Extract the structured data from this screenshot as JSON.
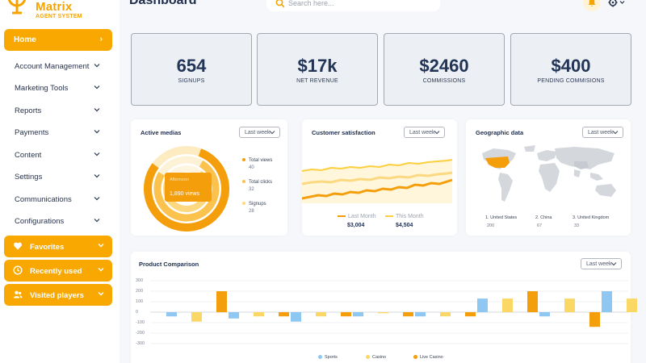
{
  "brand": {
    "name": "Matrix",
    "subtitle": "AGENT SYSTEM"
  },
  "header": {
    "title": "Dashboard",
    "search_placeholder": "Search here..."
  },
  "sidebar": {
    "home": "Home",
    "items": [
      {
        "label": "Account Management"
      },
      {
        "label": "Marketing Tools"
      },
      {
        "label": "Reports"
      },
      {
        "label": "Payments"
      },
      {
        "label": "Content"
      },
      {
        "label": "Settings"
      },
      {
        "label": "Communications"
      },
      {
        "label": "Configurations"
      }
    ],
    "pills": [
      {
        "label": "Favorites",
        "icon": "heart-icon"
      },
      {
        "label": "Recently used",
        "icon": "clock-icon"
      },
      {
        "label": "Visited players",
        "icon": "users-icon"
      }
    ]
  },
  "kpis": [
    {
      "value": "654",
      "label": "SIGNUPS"
    },
    {
      "value": "$17k",
      "label": "NET REVENUE"
    },
    {
      "value": "$2460",
      "label": "COMMISSIONS"
    },
    {
      "value": "$400",
      "label": "PENDING COMMISIONS"
    }
  ],
  "active_medias": {
    "title": "Active medias",
    "range": "Last week",
    "tooltip_title": "Afternoon",
    "tooltip_value": "1,890 views",
    "legend": [
      {
        "label": "Total views",
        "value": "40",
        "color": "#f59e0b"
      },
      {
        "label": "Total clicks",
        "value": "32",
        "color": "#fbc24d"
      },
      {
        "label": "Signups",
        "value": "28",
        "color": "#fcd980"
      }
    ]
  },
  "satisfaction": {
    "title": "Customer satisfaction",
    "range": "Last week",
    "last_label": "Last Month",
    "this_label": "This Month",
    "last_value": "$3,004",
    "this_value": "$4,504"
  },
  "geo": {
    "title": "Geographic data",
    "range": "Last week",
    "countries": [
      {
        "label": "1. United States",
        "value": "200"
      },
      {
        "label": "2. China",
        "value": "67"
      },
      {
        "label": "3. United Kingdom",
        "value": "33"
      }
    ]
  },
  "product": {
    "title": "Product Comparison",
    "range": "Last week",
    "yticks": [
      "300",
      "200",
      "100",
      "0",
      "-100",
      "-200",
      "-300"
    ],
    "legend": [
      {
        "label": "Sports",
        "color": "#8ec8f2"
      },
      {
        "label": "Casino",
        "color": "#fbd766"
      },
      {
        "label": "Live Casino",
        "color": "#f59e0b"
      }
    ]
  },
  "chart_data": {
    "type": "bar",
    "title": "Product Comparison",
    "ylim": [
      -300,
      300
    ],
    "series": [
      {
        "name": "Sports",
        "values": [
          -40,
          -60,
          -90,
          -40,
          -40,
          130,
          -40,
          200
        ]
      },
      {
        "name": "Casino",
        "values": [
          -90,
          -40,
          -40,
          -10,
          -40,
          130,
          130,
          130
        ]
      },
      {
        "name": "Live Casino",
        "values": [
          200,
          -40,
          -40,
          -40,
          -40,
          200,
          -140,
          270
        ]
      }
    ]
  }
}
